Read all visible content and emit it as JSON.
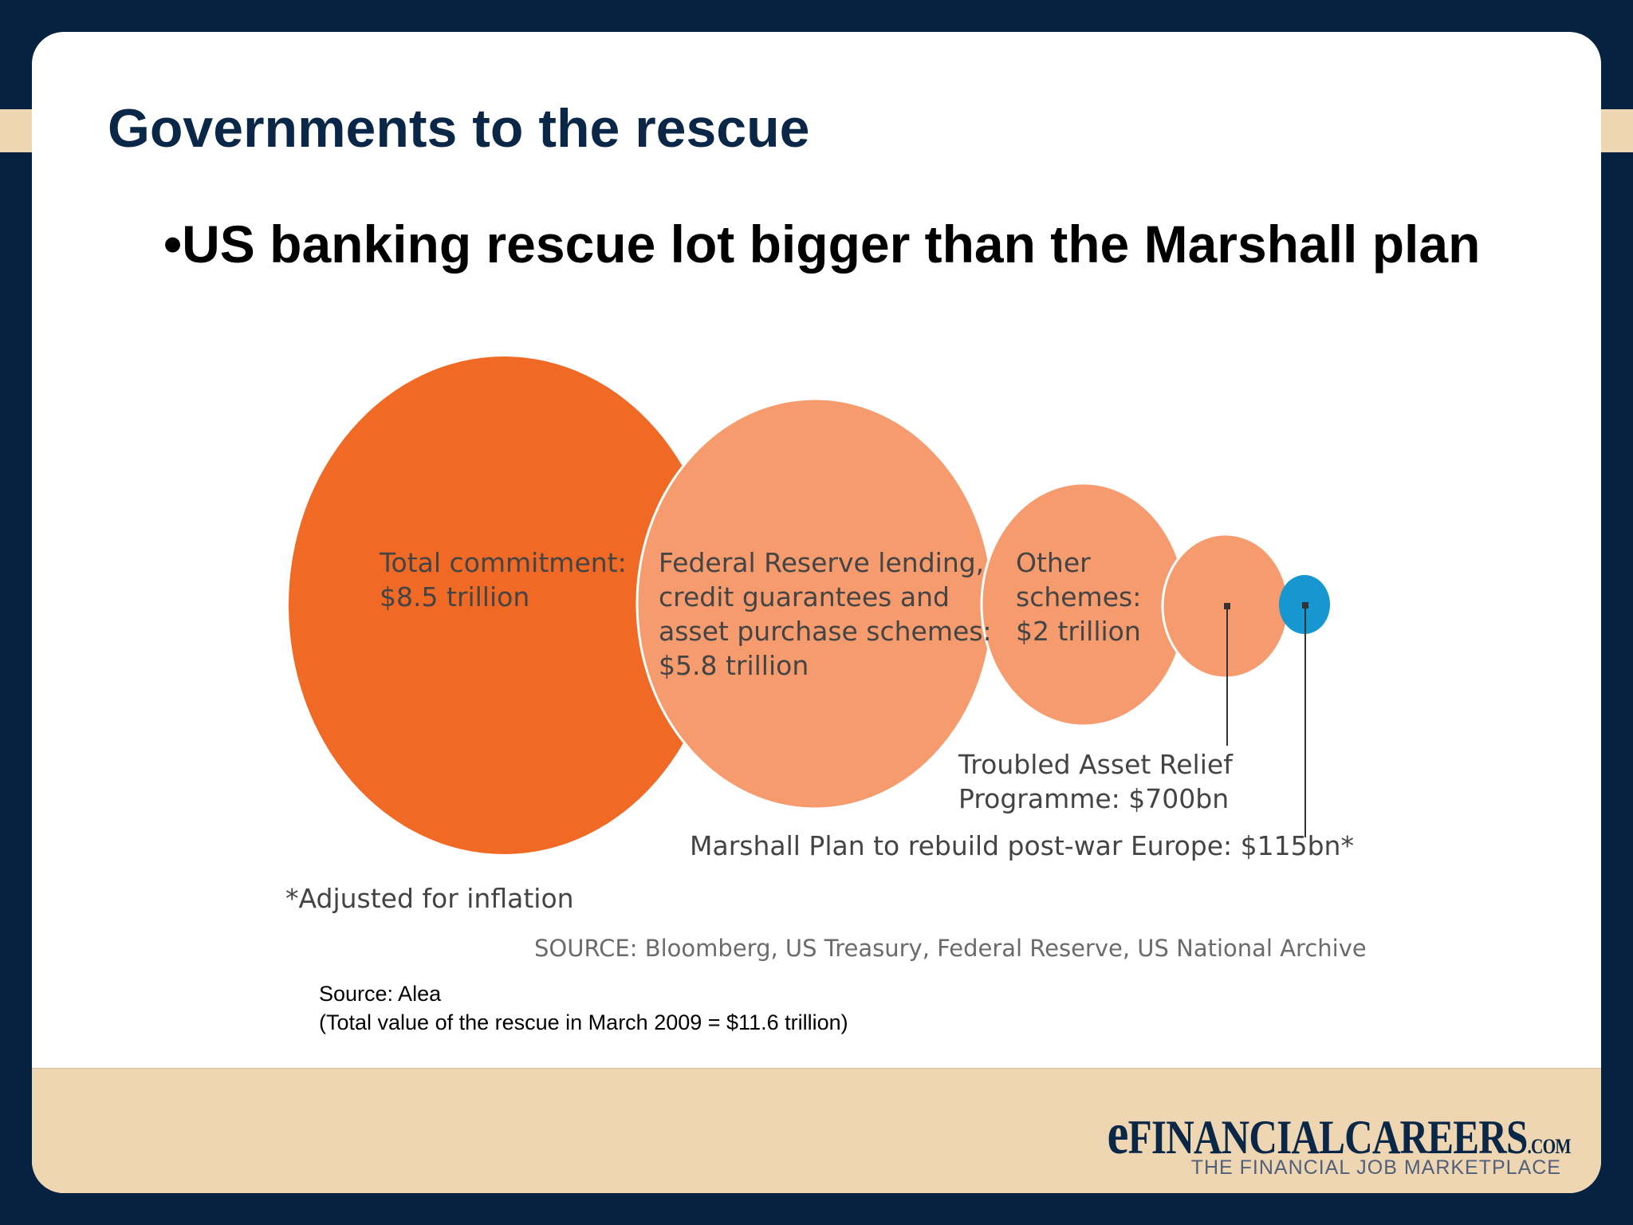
{
  "slide": {
    "title": "Governments to the rescue",
    "bullet": "•US banking rescue lot bigger than the Marshall plan",
    "source_line_1": "Source: Alea",
    "source_line_2": "(Total value of the rescue in March 2009 = $11.6 trillion)"
  },
  "logo": {
    "main_e": "e",
    "main_text": "FINANCIALCAREERS",
    "main_suffix": ".COM",
    "tagline": "THE FINANCIAL JOB MARKETPLACE"
  },
  "colors": {
    "background": "#052341",
    "accent_band": "#efd6b2",
    "title": "#0b2747",
    "total_bubble": "#f06a25",
    "component_bubble": "#f59b6e",
    "marshall_bubble": "#1797d2"
  },
  "chart_data": {
    "type": "bubble",
    "unit": "USD",
    "bubbles": [
      {
        "id": "total",
        "label_lines": [
          "Total commitment:",
          "$8.5 trillion"
        ],
        "value": 8500
      },
      {
        "id": "fed",
        "label_lines": [
          "Federal Reserve lending,",
          "credit guarantees and",
          "asset purchase schemes:",
          "$5.8 trillion"
        ],
        "value": 5800
      },
      {
        "id": "other",
        "label_lines": [
          "Other",
          "schemes:",
          "$2 trillion"
        ],
        "value": 2000
      },
      {
        "id": "tarp",
        "label_lines": [
          "Troubled Asset Relief",
          "Programme: $700bn"
        ],
        "value": 700
      },
      {
        "id": "marshall",
        "label_lines": [
          "Marshall Plan to rebuild post-war Europe: $115bn*"
        ],
        "value": 115
      }
    ],
    "footnote": "*Adjusted for inflation",
    "source": "SOURCE: Bloomberg, US Treasury, Federal Reserve, US National Archive"
  }
}
